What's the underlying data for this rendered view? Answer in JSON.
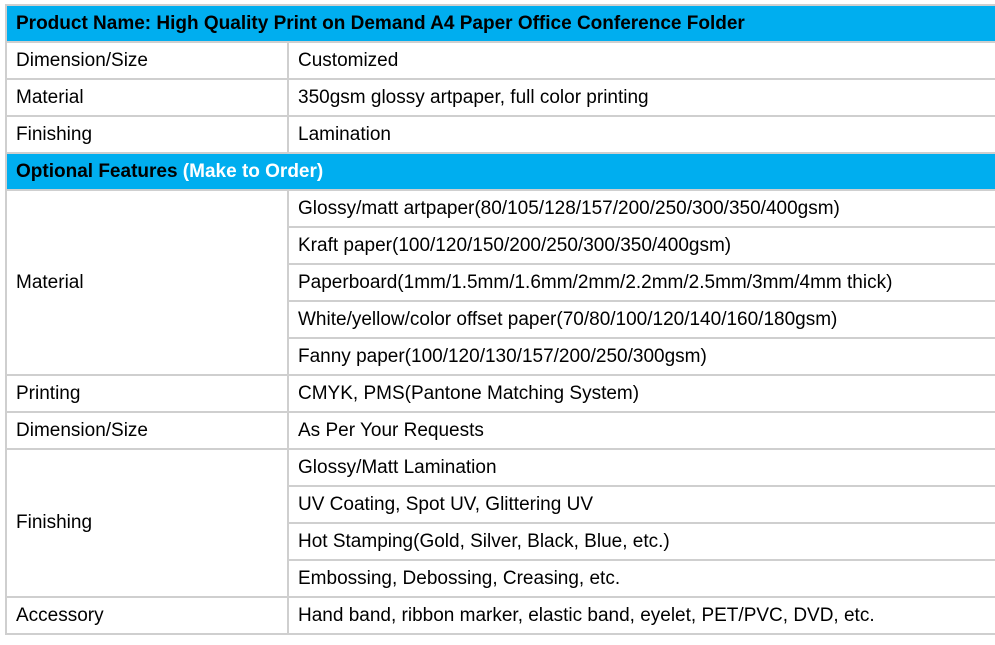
{
  "colors": {
    "header_bg": "#00AEEF",
    "header_text": "#000000",
    "header_accent_text": "#ffffff",
    "border": "#cfcfcf",
    "body_text": "#000000"
  },
  "header": {
    "title": "Product Name: High Quality Print on Demand A4 Paper Office Conference Folder"
  },
  "basic_rows": [
    {
      "label": "Dimension/Size",
      "value": "Customized"
    },
    {
      "label": "Material",
      "value": "350gsm glossy artpaper, full color printing"
    },
    {
      "label": "Finishing",
      "value": "Lamination"
    }
  ],
  "section2": {
    "title_black": "Optional Features",
    "title_white": " (Make to Order)"
  },
  "optional": {
    "material": {
      "label": "Material",
      "values": [
        "Glossy/matt artpaper(80/105/128/157/200/250/300/350/400gsm)",
        "Kraft paper(100/120/150/200/250/300/350/400gsm)",
        "Paperboard(1mm/1.5mm/1.6mm/2mm/2.2mm/2.5mm/3mm/4mm thick)",
        "White/yellow/color offset paper(70/80/100/120/140/160/180gsm)",
        "Fanny paper(100/120/130/157/200/250/300gsm)"
      ]
    },
    "printing": {
      "label": "Printing",
      "value": "CMYK, PMS(Pantone Matching System)"
    },
    "dimension": {
      "label": "Dimension/Size",
      "value": "As Per Your Requests"
    },
    "finishing": {
      "label": "Finishing",
      "values": [
        "Glossy/Matt Lamination",
        "UV Coating, Spot UV, Glittering UV",
        "Hot Stamping(Gold, Silver, Black, Blue, etc.)",
        "Embossing, Debossing, Creasing, etc."
      ]
    },
    "accessory": {
      "label": "Accessory",
      "value": "Hand band, ribbon marker, elastic band, eyelet, PET/PVC, DVD, etc."
    }
  }
}
